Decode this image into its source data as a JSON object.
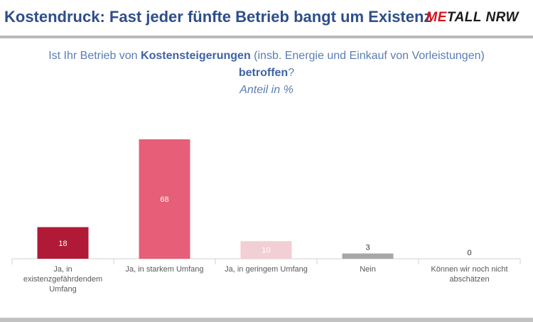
{
  "header": {
    "title": "Kostendruck: Fast jeder fünfte Betrieb bangt um Existenz",
    "logo_accent": "ME",
    "logo_rest": "TALL NRW"
  },
  "question": {
    "part1": "Ist Ihr Betrieb von ",
    "part2": "Kostensteigerungen",
    "part3": " (insb. Energie und Einkauf von Vorleistungen)",
    "part4": "betroffen",
    "part5": "?",
    "unit": "Anteil in %"
  },
  "chart_data": {
    "type": "bar",
    "categories": [
      "Ja, in existenzgefährdendem Umfang",
      "Ja, in starkem Umfang",
      "Ja, in geringem Umfang",
      "Nein",
      "Können wir noch nicht abschätzen"
    ],
    "values": [
      18,
      68,
      10,
      3,
      0
    ],
    "value_labels": [
      "18",
      "68",
      "10",
      "3",
      "0"
    ],
    "colors": [
      "#b01a36",
      "#e65e78",
      "#f2cfd4",
      "#a6a6a6",
      "#a6a6a6"
    ],
    "ylim": [
      0,
      68
    ],
    "grid": false,
    "legend": "none"
  }
}
